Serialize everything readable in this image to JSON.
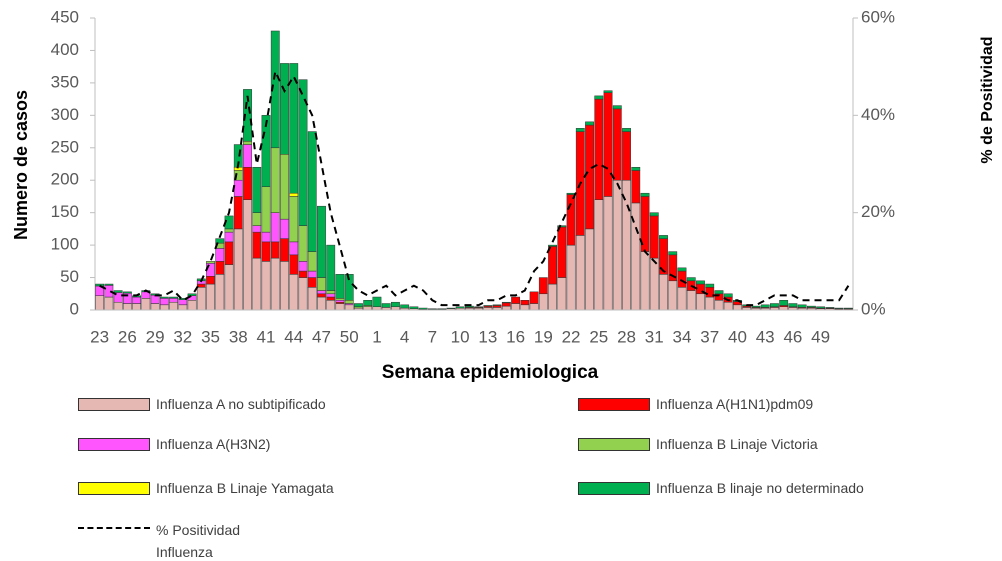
{
  "chart_data": {
    "type": "stacked-bar",
    "x_label": "Semana epidemiologica",
    "y_label": "Numero de casos",
    "y2_label": "% de Positividad",
    "categories": [
      "23",
      null,
      null,
      "26",
      null,
      null,
      "29",
      null,
      null,
      "32",
      null,
      null,
      "35",
      null,
      null,
      "38",
      null,
      null,
      "41",
      null,
      null,
      "44",
      null,
      null,
      "47",
      null,
      null,
      "50",
      null,
      null,
      "1",
      null,
      null,
      "4",
      null,
      null,
      "7",
      null,
      null,
      "10",
      null,
      null,
      "13",
      null,
      null,
      "16",
      null,
      null,
      "19",
      null,
      null,
      "22",
      null,
      null,
      "25",
      null,
      null,
      "28",
      null,
      null,
      "31",
      null,
      null,
      "34",
      null,
      null,
      "37",
      null,
      null,
      "40",
      null,
      null,
      "43",
      null,
      null,
      "46",
      null,
      null,
      "49",
      null,
      null,
      null
    ],
    "ylim": [
      0,
      450
    ],
    "yticks": [
      0,
      50,
      100,
      150,
      200,
      250,
      300,
      350,
      400,
      450
    ],
    "y2lim": [
      0,
      60
    ],
    "y2ticks": [
      {
        "value": 0,
        "label": "0%"
      },
      {
        "value": 20,
        "label": "20%"
      },
      {
        "value": 40,
        "label": "40%"
      },
      {
        "value": 60,
        "label": "60%"
      }
    ],
    "series": [
      {
        "name": "Influenza A no subtipificado",
        "color": "#e6b8b4",
        "values": [
          22,
          20,
          12,
          10,
          10,
          18,
          10,
          8,
          12,
          8,
          15,
          35,
          40,
          55,
          70,
          125,
          170,
          80,
          75,
          80,
          75,
          55,
          50,
          35,
          20,
          15,
          10,
          8,
          3,
          5,
          5,
          4,
          5,
          3,
          2,
          1,
          1,
          1,
          2,
          3,
          3,
          3,
          4,
          4,
          6,
          10,
          8,
          10,
          25,
          40,
          50,
          100,
          115,
          125,
          170,
          175,
          200,
          200,
          165,
          90,
          80,
          55,
          45,
          35,
          30,
          25,
          20,
          15,
          12,
          8,
          4,
          3,
          3,
          4,
          5,
          4,
          3,
          3,
          2,
          2,
          1,
          1
        ]
      },
      {
        "name": "Influenza A(H1N1)pdm09",
        "color": "#ff0000",
        "values": [
          0,
          0,
          0,
          0,
          0,
          0,
          0,
          0,
          0,
          0,
          0,
          5,
          12,
          20,
          35,
          50,
          50,
          40,
          30,
          25,
          35,
          30,
          10,
          15,
          5,
          5,
          2,
          0,
          0,
          0,
          0,
          0,
          0,
          0,
          0,
          0,
          0,
          0,
          0,
          0,
          1,
          1,
          2,
          3,
          5,
          10,
          7,
          18,
          25,
          58,
          78,
          78,
          160,
          160,
          155,
          160,
          110,
          75,
          50,
          85,
          65,
          55,
          40,
          25,
          15,
          15,
          15,
          10,
          8,
          5,
          2,
          1,
          1,
          1,
          2,
          1,
          1,
          1,
          1,
          1,
          1,
          1
        ]
      },
      {
        "name": "Influenza A(H3N2)",
        "color": "#ff55ff",
        "values": [
          15,
          18,
          15,
          16,
          10,
          10,
          13,
          10,
          6,
          8,
          7,
          5,
          20,
          20,
          15,
          25,
          35,
          10,
          15,
          45,
          30,
          20,
          15,
          10,
          5,
          5,
          3,
          2,
          0,
          0,
          0,
          0,
          0,
          0,
          0,
          0,
          0,
          0,
          0,
          0,
          0,
          0,
          0,
          0,
          0,
          0,
          0,
          0,
          0,
          0,
          0,
          0,
          0,
          0,
          0,
          0,
          0,
          0,
          0,
          0,
          0,
          0,
          0,
          0,
          0,
          0,
          0,
          0,
          0,
          0,
          0,
          0,
          0,
          0,
          0,
          0,
          0,
          0,
          0,
          0,
          0,
          0
        ]
      },
      {
        "name": "Influenza B Linaje Victoria",
        "color": "#92d050",
        "values": [
          0,
          0,
          0,
          0,
          0,
          0,
          0,
          0,
          0,
          0,
          0,
          0,
          3,
          8,
          5,
          15,
          5,
          20,
          70,
          100,
          100,
          70,
          55,
          30,
          20,
          5,
          3,
          5,
          2,
          2,
          0,
          0,
          0,
          0,
          0,
          0,
          0,
          0,
          0,
          0,
          0,
          0,
          0,
          0,
          0,
          0,
          0,
          0,
          0,
          0,
          0,
          0,
          0,
          0,
          0,
          0,
          0,
          0,
          0,
          0,
          0,
          0,
          0,
          0,
          0,
          0,
          0,
          0,
          0,
          0,
          0,
          0,
          0,
          0,
          0,
          0,
          0,
          0,
          0,
          0,
          0,
          0
        ]
      },
      {
        "name": "Influenza B Linaje Yamagata",
        "color": "#ffff00",
        "values": [
          0,
          0,
          0,
          0,
          0,
          0,
          0,
          0,
          0,
          0,
          0,
          0,
          0,
          0,
          0,
          5,
          0,
          0,
          0,
          0,
          0,
          5,
          0,
          0,
          0,
          0,
          0,
          0,
          0,
          0,
          0,
          0,
          0,
          0,
          0,
          0,
          0,
          0,
          0,
          0,
          0,
          0,
          0,
          0,
          0,
          0,
          0,
          0,
          0,
          0,
          0,
          0,
          0,
          0,
          0,
          0,
          0,
          0,
          0,
          0,
          0,
          0,
          0,
          0,
          0,
          0,
          0,
          0,
          0,
          0,
          0,
          0,
          0,
          0,
          0,
          0,
          0,
          0,
          0,
          0,
          0,
          0
        ]
      },
      {
        "name": "Influenza B linaje no determinado",
        "color": "#00b050",
        "values": [
          3,
          2,
          3,
          2,
          2,
          2,
          2,
          2,
          2,
          2,
          3,
          3,
          0,
          7,
          20,
          35,
          80,
          70,
          110,
          180,
          140,
          200,
          225,
          185,
          110,
          70,
          37,
          40,
          5,
          8,
          15,
          6,
          7,
          5,
          3,
          2,
          1,
          1,
          1,
          2,
          2,
          1,
          1,
          1,
          1,
          0,
          0,
          0,
          0,
          2,
          2,
          2,
          5,
          5,
          5,
          3,
          5,
          5,
          5,
          5,
          5,
          5,
          5,
          5,
          5,
          5,
          5,
          5,
          5,
          2,
          2,
          2,
          4,
          5,
          8,
          5,
          4,
          2,
          2,
          1,
          1,
          1
        ]
      },
      {
        "name": "% Positividad Influenza",
        "type": "line",
        "axis": "y2",
        "dashed": true,
        "color": "#000000",
        "values": [
          5,
          4,
          3,
          3,
          3,
          4,
          3,
          3,
          4,
          2,
          3,
          6,
          10,
          15,
          20,
          30,
          44,
          30,
          38,
          49,
          45,
          48,
          44,
          40,
          30,
          20,
          13,
          6,
          4,
          3,
          4,
          5,
          3,
          4,
          5,
          4,
          2,
          1,
          1,
          1,
          1,
          1,
          2,
          2,
          3,
          3,
          4,
          8,
          10,
          14,
          18,
          22,
          26,
          29,
          30,
          29,
          26,
          22,
          17,
          12,
          10,
          8,
          7,
          6,
          5,
          4,
          3,
          3,
          2,
          2,
          1,
          1,
          2,
          3,
          3,
          3,
          2,
          2,
          2,
          2,
          2,
          5
        ]
      }
    ]
  }
}
